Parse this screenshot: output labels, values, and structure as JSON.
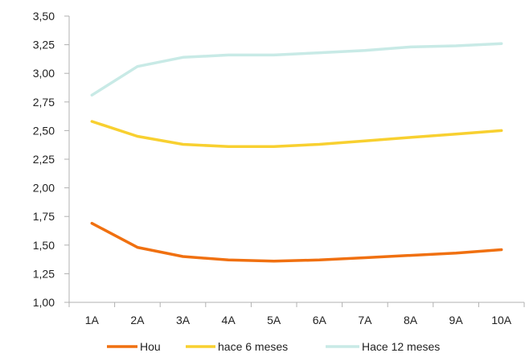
{
  "chart_data": {
    "type": "line",
    "title": "",
    "xlabel": "",
    "ylabel": "",
    "categories": [
      "1A",
      "2A",
      "3A",
      "4A",
      "5A",
      "6A",
      "7A",
      "8A",
      "9A",
      "10A"
    ],
    "ylim": [
      1.0,
      3.5
    ],
    "y_ticks": [
      "1,00",
      "1,25",
      "1,50",
      "1,75",
      "2,00",
      "2,25",
      "2,50",
      "2,75",
      "3,00",
      "3,25",
      "3,50"
    ],
    "grid": false,
    "legend_position": "bottom",
    "series": [
      {
        "name": "Hou",
        "color": "#f07010",
        "values": [
          1.69,
          1.48,
          1.4,
          1.37,
          1.36,
          1.37,
          1.39,
          1.41,
          1.43,
          1.46
        ]
      },
      {
        "name": "hace 6 meses",
        "color": "#f8d030",
        "values": [
          2.58,
          2.45,
          2.38,
          2.36,
          2.36,
          2.38,
          2.41,
          2.44,
          2.47,
          2.5
        ]
      },
      {
        "name": "Hace 12 meses",
        "color": "#c8eae6",
        "values": [
          2.81,
          3.06,
          3.14,
          3.16,
          3.16,
          3.18,
          3.2,
          3.23,
          3.24,
          3.26
        ]
      }
    ]
  }
}
